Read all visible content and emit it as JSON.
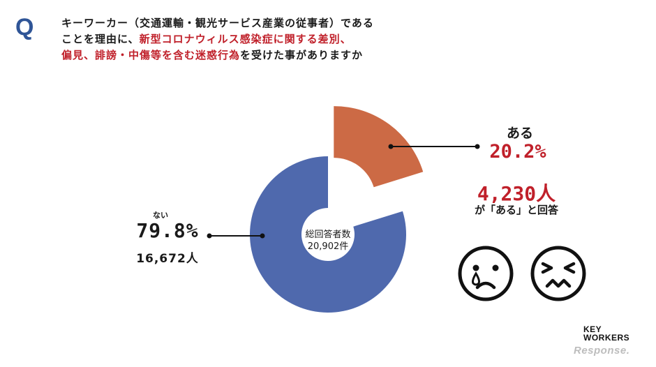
{
  "question": {
    "mark": "Q",
    "line1": "キーワーカー（交通運輸・観光サービス産業の従事者）である",
    "line2_plain": "ことを理由に、",
    "line2_red": "新型コロナウィルス感染症に関する差別、",
    "line3_red": "偏見、誹謗・中傷等を含む迷惑行為",
    "line3_plain": "を受けた事がありますか"
  },
  "chart_data": {
    "type": "pie",
    "variant": "donut-exploded",
    "center_label": "総回答者数",
    "center_value": "20,902件",
    "slices": [
      {
        "name": "ある",
        "percent": 20.2,
        "percent_text": "20.2%",
        "count_text": "4,230人",
        "color": "#cc6a45",
        "exploded": true
      },
      {
        "name": "ない",
        "percent": 79.8,
        "percent_text": "79.8%",
        "count_text": "16,672人",
        "color": "#4f69ad",
        "exploded": false
      }
    ],
    "annotation": "が「ある」と回答"
  },
  "faces": [
    "crying-face-icon",
    "frustrated-face-icon"
  ],
  "logo": {
    "line1": "KEY",
    "line2": "WORKERS"
  },
  "watermark": "Response."
}
